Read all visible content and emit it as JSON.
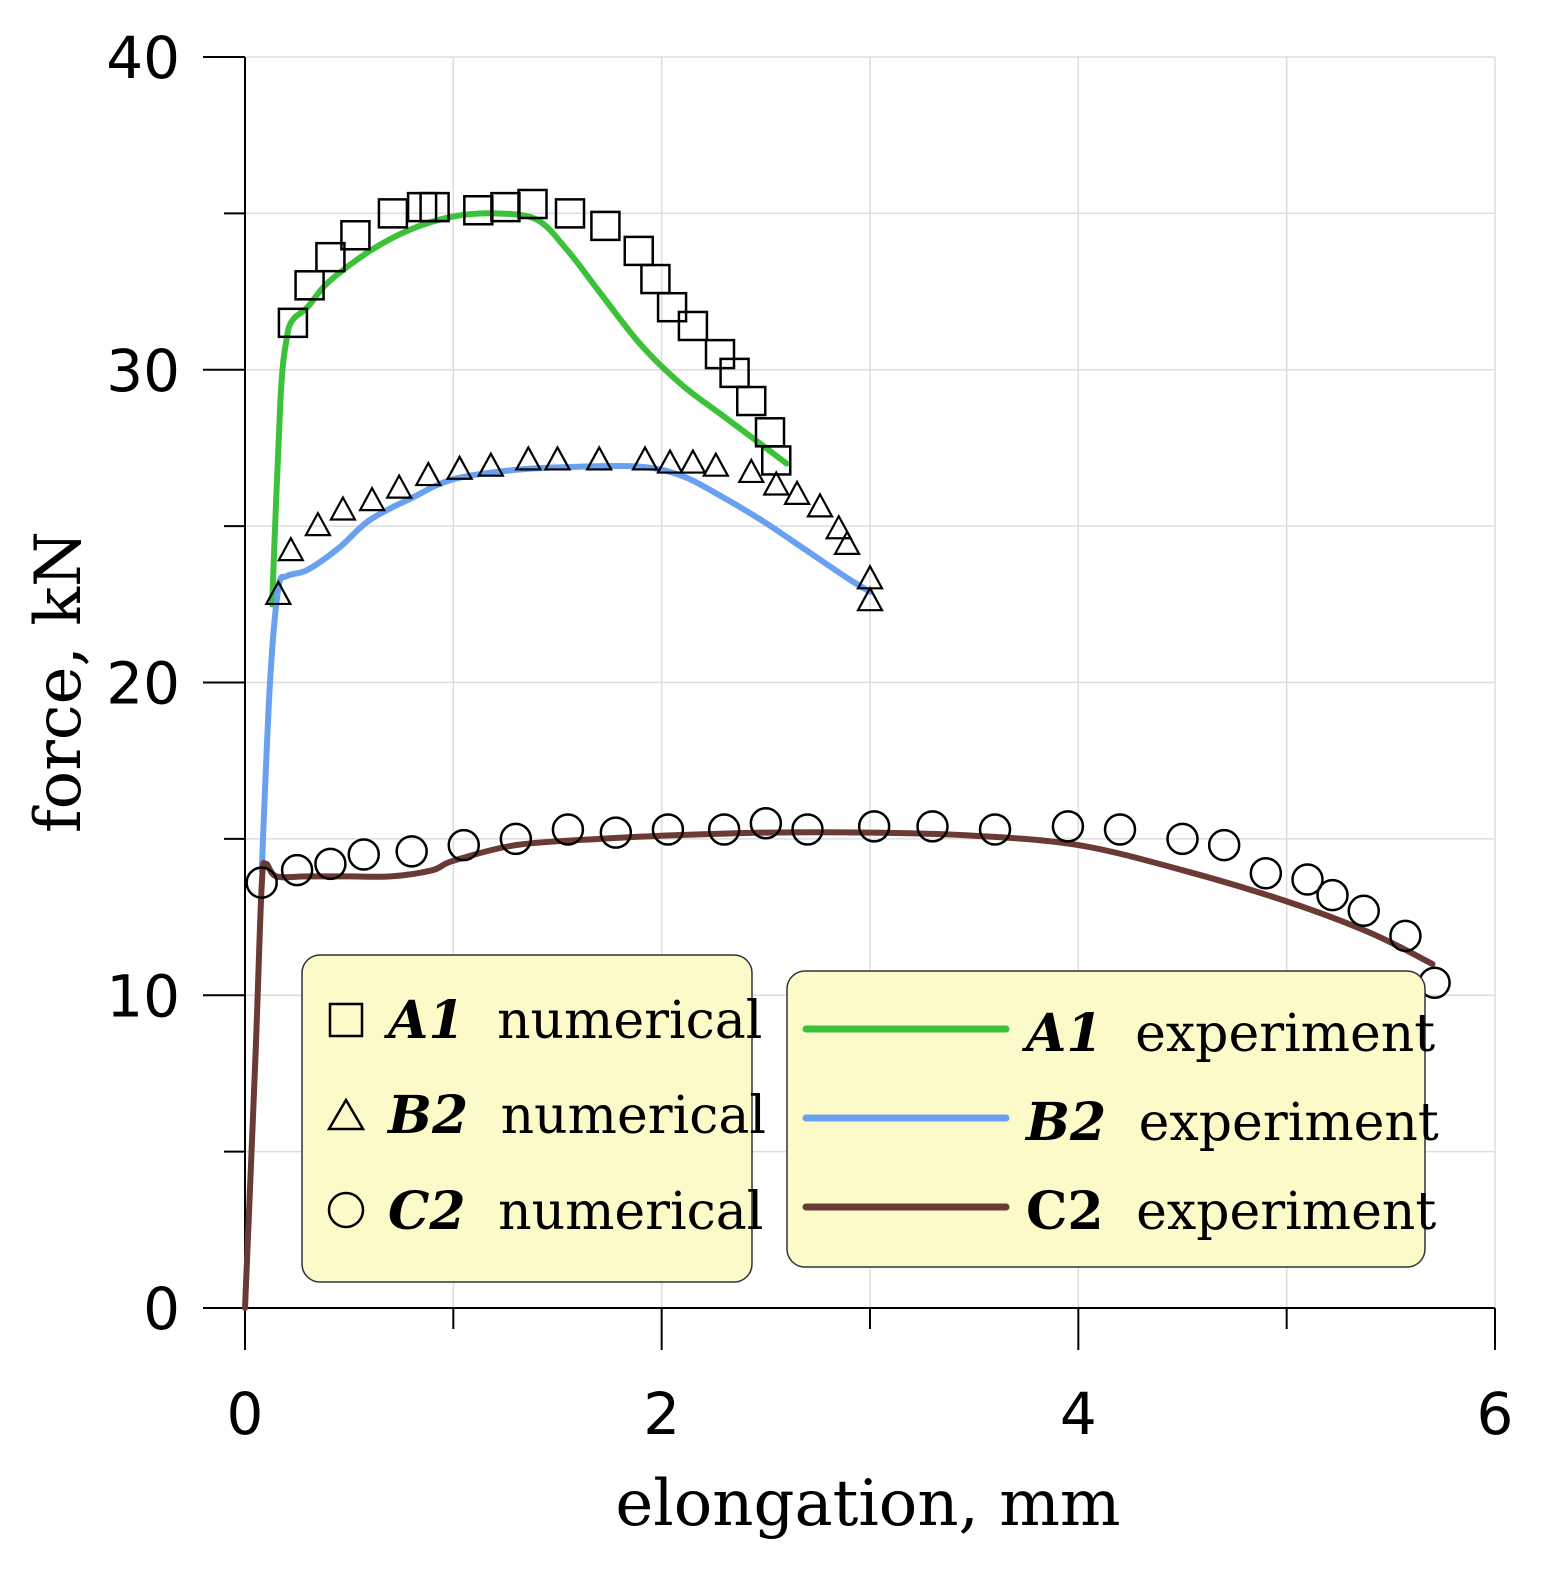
{
  "chart_data": {
    "type": "line",
    "title": "",
    "xlabel": "elongation, mm",
    "ylabel": "force, kN",
    "xlim": [
      0,
      6
    ],
    "ylim": [
      0,
      40
    ],
    "x_ticks": [
      0,
      2,
      4,
      6
    ],
    "x_tick_labels": [
      "0",
      "2",
      "4",
      "6"
    ],
    "x_minor_ticks": [
      1,
      3,
      5
    ],
    "y_ticks": [
      0,
      10,
      20,
      30,
      40
    ],
    "y_tick_labels": [
      "0",
      "10",
      "20",
      "30",
      "40"
    ],
    "y_minor_ticks": [
      5,
      15,
      25,
      35
    ],
    "grid": true,
    "colors": {
      "a1": "#3cc23a",
      "b2": "#6aa0f0",
      "c2": "#6b3a34",
      "legend_bg": "#fbfac8",
      "grid": "#dddddd"
    },
    "series": [
      {
        "key": "a1_exp",
        "name": "A1 experiment",
        "kind": "line",
        "color": "#3cc23a",
        "x": [
          0.13,
          0.17,
          0.2,
          0.23,
          0.3,
          0.4,
          0.6,
          0.8,
          1.0,
          1.2,
          1.4,
          1.55,
          1.7,
          1.9,
          2.1,
          2.3,
          2.5,
          2.6
        ],
        "y": [
          22.5,
          29.0,
          31.0,
          31.6,
          32.0,
          32.8,
          33.8,
          34.5,
          34.9,
          35.0,
          34.8,
          33.8,
          32.5,
          30.8,
          29.5,
          28.5,
          27.5,
          27.0
        ]
      },
      {
        "key": "b2_exp",
        "name": "B2 experiment",
        "kind": "line",
        "color": "#6aa0f0",
        "x": [
          0.08,
          0.12,
          0.16,
          0.2,
          0.3,
          0.45,
          0.6,
          0.8,
          1.0,
          1.3,
          1.6,
          1.9,
          2.1,
          2.3,
          2.5,
          2.7,
          2.9,
          3.0
        ],
        "y": [
          14.0,
          20.0,
          23.0,
          23.4,
          23.6,
          24.3,
          25.2,
          25.9,
          26.5,
          26.8,
          26.9,
          26.9,
          26.6,
          25.9,
          25.1,
          24.2,
          23.3,
          22.9
        ]
      },
      {
        "key": "c2_exp",
        "name": "C2 experiment",
        "kind": "line",
        "color": "#6b3a34",
        "x": [
          0.0,
          0.05,
          0.08,
          0.1,
          0.15,
          0.3,
          0.5,
          0.7,
          0.9,
          1.0,
          1.3,
          1.7,
          2.0,
          2.5,
          3.0,
          3.5,
          4.0,
          4.5,
          5.0,
          5.4,
          5.7
        ],
        "y": [
          0.0,
          8.0,
          13.5,
          14.2,
          13.8,
          13.8,
          13.8,
          13.8,
          14.0,
          14.3,
          14.8,
          15.0,
          15.1,
          15.2,
          15.2,
          15.1,
          14.8,
          14.0,
          13.0,
          12.0,
          11.0
        ]
      },
      {
        "key": "a1_num",
        "name": "A1 numerical",
        "kind": "square",
        "x": [
          0.23,
          0.31,
          0.41,
          0.53,
          0.71,
          0.85,
          0.91,
          1.12,
          1.25,
          1.38,
          1.56,
          1.73,
          1.89,
          1.97,
          2.05,
          2.15,
          2.28,
          2.35,
          2.43,
          2.52,
          2.55
        ],
        "y": [
          31.5,
          32.7,
          33.6,
          34.3,
          35.0,
          35.2,
          35.2,
          35.1,
          35.2,
          35.3,
          35.0,
          34.6,
          33.8,
          32.9,
          32.0,
          31.4,
          30.5,
          29.9,
          29.0,
          28.0,
          27.1
        ]
      },
      {
        "key": "b2_num",
        "name": "B2 numerical",
        "kind": "triangle",
        "x": [
          0.16,
          0.22,
          0.35,
          0.47,
          0.61,
          0.74,
          0.88,
          1.03,
          1.18,
          1.36,
          1.5,
          1.7,
          1.92,
          2.04,
          2.15,
          2.26,
          2.43,
          2.55,
          2.65,
          2.76,
          2.85,
          2.89,
          3.0,
          3.0
        ],
        "y": [
          22.8,
          24.2,
          25.0,
          25.5,
          25.8,
          26.2,
          26.6,
          26.8,
          26.9,
          27.1,
          27.1,
          27.1,
          27.1,
          27.0,
          27.0,
          26.9,
          26.7,
          26.3,
          26.0,
          25.6,
          24.9,
          24.4,
          23.3,
          22.6
        ]
      },
      {
        "key": "c2_num",
        "name": "C2 numerical",
        "kind": "circle",
        "x": [
          0.08,
          0.25,
          0.41,
          0.57,
          0.8,
          1.05,
          1.3,
          1.55,
          1.78,
          2.03,
          2.3,
          2.5,
          2.7,
          3.02,
          3.3,
          3.6,
          3.95,
          4.2,
          4.5,
          4.7,
          4.9,
          5.1,
          5.22,
          5.37,
          5.57,
          5.71
        ],
        "y": [
          13.6,
          14.0,
          14.2,
          14.5,
          14.6,
          14.8,
          15.0,
          15.3,
          15.2,
          15.3,
          15.3,
          15.5,
          15.3,
          15.4,
          15.4,
          15.3,
          15.4,
          15.3,
          15.0,
          14.8,
          13.9,
          13.7,
          13.2,
          12.7,
          11.9,
          10.4
        ]
      }
    ],
    "legends": [
      {
        "position": "bottom-left",
        "entries": [
          {
            "symbol": "square",
            "id": "A1",
            "text": "numerical"
          },
          {
            "symbol": "triangle",
            "id": "B2",
            "text": "numerical"
          },
          {
            "symbol": "circle",
            "id": "C2",
            "text": "numerical"
          }
        ]
      },
      {
        "position": "bottom-right",
        "entries": [
          {
            "symbol": "line",
            "color": "#3cc23a",
            "id": "A1",
            "text": "experiment",
            "italic": true
          },
          {
            "symbol": "line",
            "color": "#6aa0f0",
            "id": "B2",
            "text": "experiment",
            "italic": true
          },
          {
            "symbol": "line",
            "color": "#6b3a34",
            "id": "C2",
            "text": "experiment",
            "italic": false
          }
        ]
      }
    ]
  }
}
